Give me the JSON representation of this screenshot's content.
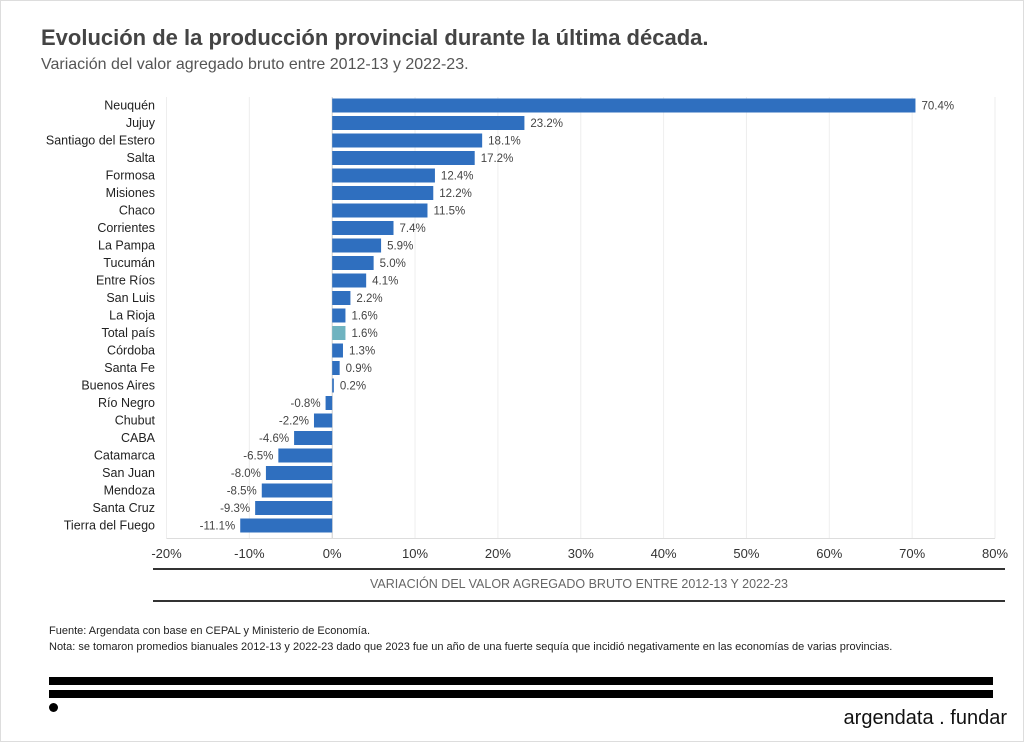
{
  "chart_data": {
    "type": "bar",
    "orientation": "horizontal",
    "title": "Evolución de la producción provincial durante la última década.",
    "subtitle": "Variación del valor agregado bruto entre 2012-13 y 2022-23.",
    "xlabel": "VARIACIÓN DEL VALOR AGREGADO BRUTO ENTRE 2012-13 Y 2022-23",
    "xlim": [
      -20,
      80
    ],
    "xticks": [
      "-20%",
      "-10%",
      "0%",
      "10%",
      "20%",
      "30%",
      "40%",
      "50%",
      "60%",
      "70%",
      "80%"
    ],
    "grid": true,
    "categories": [
      "Neuquén",
      "Jujuy",
      "Santiago del Estero",
      "Salta",
      "Formosa",
      "Misiones",
      "Chaco",
      "Corrientes",
      "La Pampa",
      "Tucumán",
      "Entre Ríos",
      "San Luis",
      "La Rioja",
      "Total país",
      "Córdoba",
      "Santa Fe",
      "Buenos Aires",
      "Río Negro",
      "Chubut",
      "CABA",
      "Catamarca",
      "San Juan",
      "Mendoza",
      "Santa Cruz",
      "Tierra del Fuego"
    ],
    "values": [
      70.4,
      23.2,
      18.1,
      17.2,
      12.4,
      12.2,
      11.5,
      7.4,
      5.9,
      5.0,
      4.1,
      2.2,
      1.6,
      1.6,
      1.3,
      0.9,
      0.2,
      -0.8,
      -2.2,
      -4.6,
      -6.5,
      -8.0,
      -8.5,
      -9.3,
      -11.1
    ],
    "labels": [
      "70.4%",
      "23.2%",
      "18.1%",
      "17.2%",
      "12.4%",
      "12.2%",
      "11.5%",
      "7.4%",
      "5.9%",
      "5.0%",
      "4.1%",
      "2.2%",
      "1.6%",
      "1.6%",
      "1.3%",
      "0.9%",
      "0.2%",
      "-0.8%",
      "-2.2%",
      "-4.6%",
      "-6.5%",
      "-8.0%",
      "-8.5%",
      "-9.3%",
      "-11.1%"
    ],
    "colors": {
      "bar": "#2f6fbf",
      "highlight": "#6fb3c0",
      "highlight_category": "Total país"
    }
  },
  "footer": {
    "source": "Fuente: Argendata con base en CEPAL y Ministerio de Economía.",
    "note": "Nota: se tomaron promedios bianuales 2012-13 y 2022-23 dado que 2023 fue un año de una fuerte sequía que incidió negativamente en las economías de varias provincias.",
    "logo": "argendata . fundar"
  }
}
